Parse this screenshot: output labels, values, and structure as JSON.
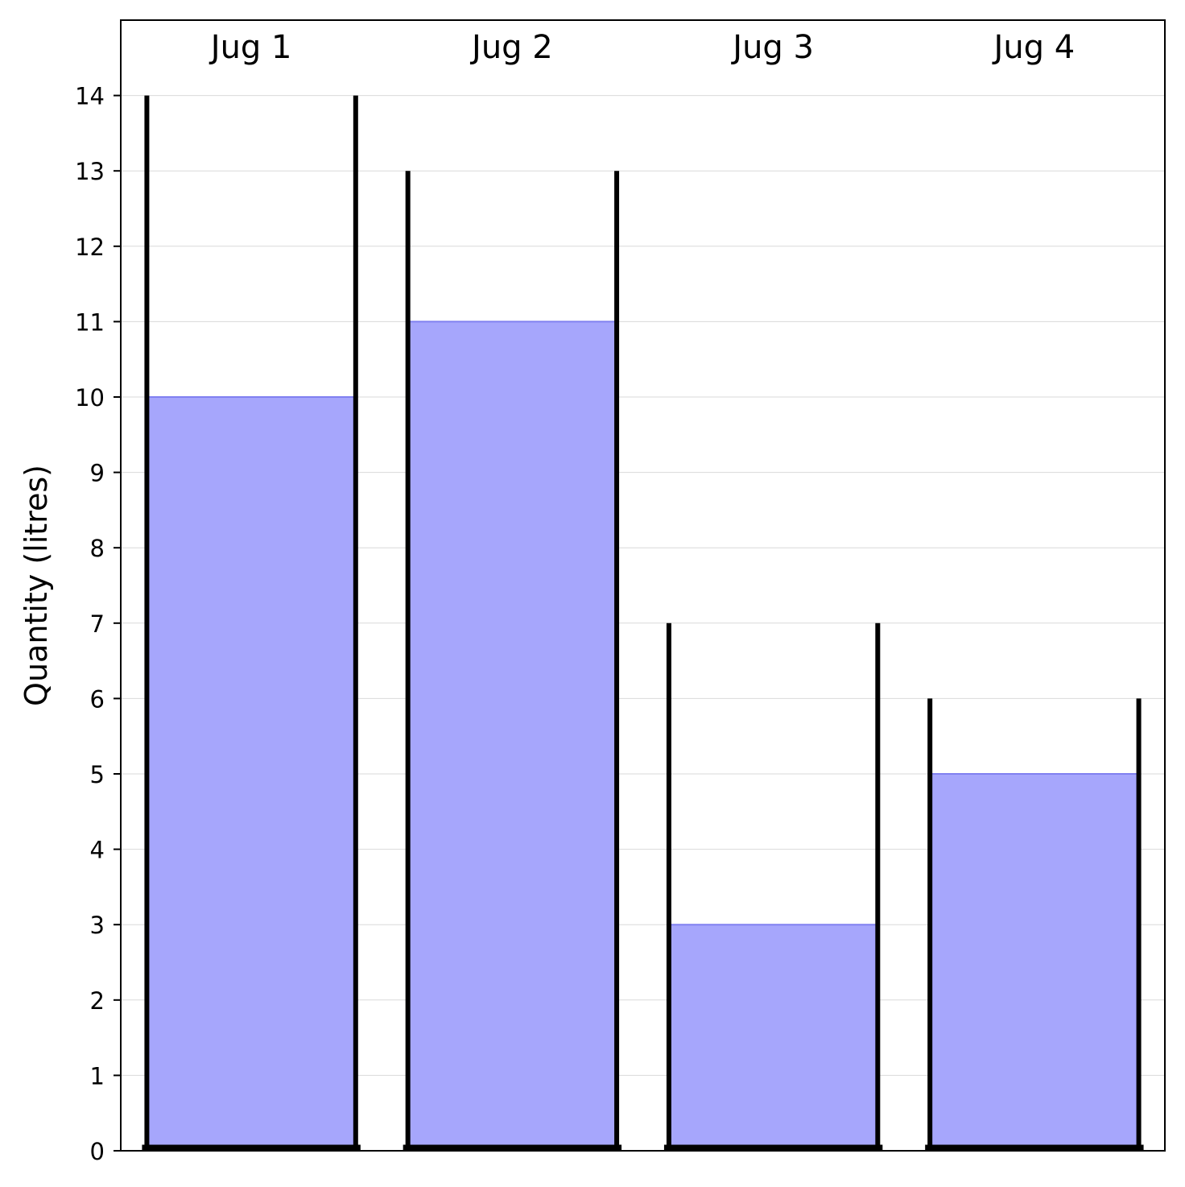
{
  "chart_data": {
    "type": "bar",
    "title": "",
    "xlabel": "",
    "ylabel": "Quantity (litres)",
    "ylim": [
      0,
      15
    ],
    "yticks": [
      0,
      1,
      2,
      3,
      4,
      5,
      6,
      7,
      8,
      9,
      10,
      11,
      12,
      13,
      14
    ],
    "grid": "horizontal",
    "categories": [
      "Jug 1",
      "Jug 2",
      "Jug 3",
      "Jug 4"
    ],
    "series": [
      {
        "values": [
          10,
          11,
          3,
          5
        ],
        "color": "#a6a6fc"
      }
    ],
    "capacities": [
      14,
      13,
      7,
      6
    ],
    "fill_edge_color": "#8080f0",
    "wall_color": "#000000",
    "label_placement": "top"
  }
}
